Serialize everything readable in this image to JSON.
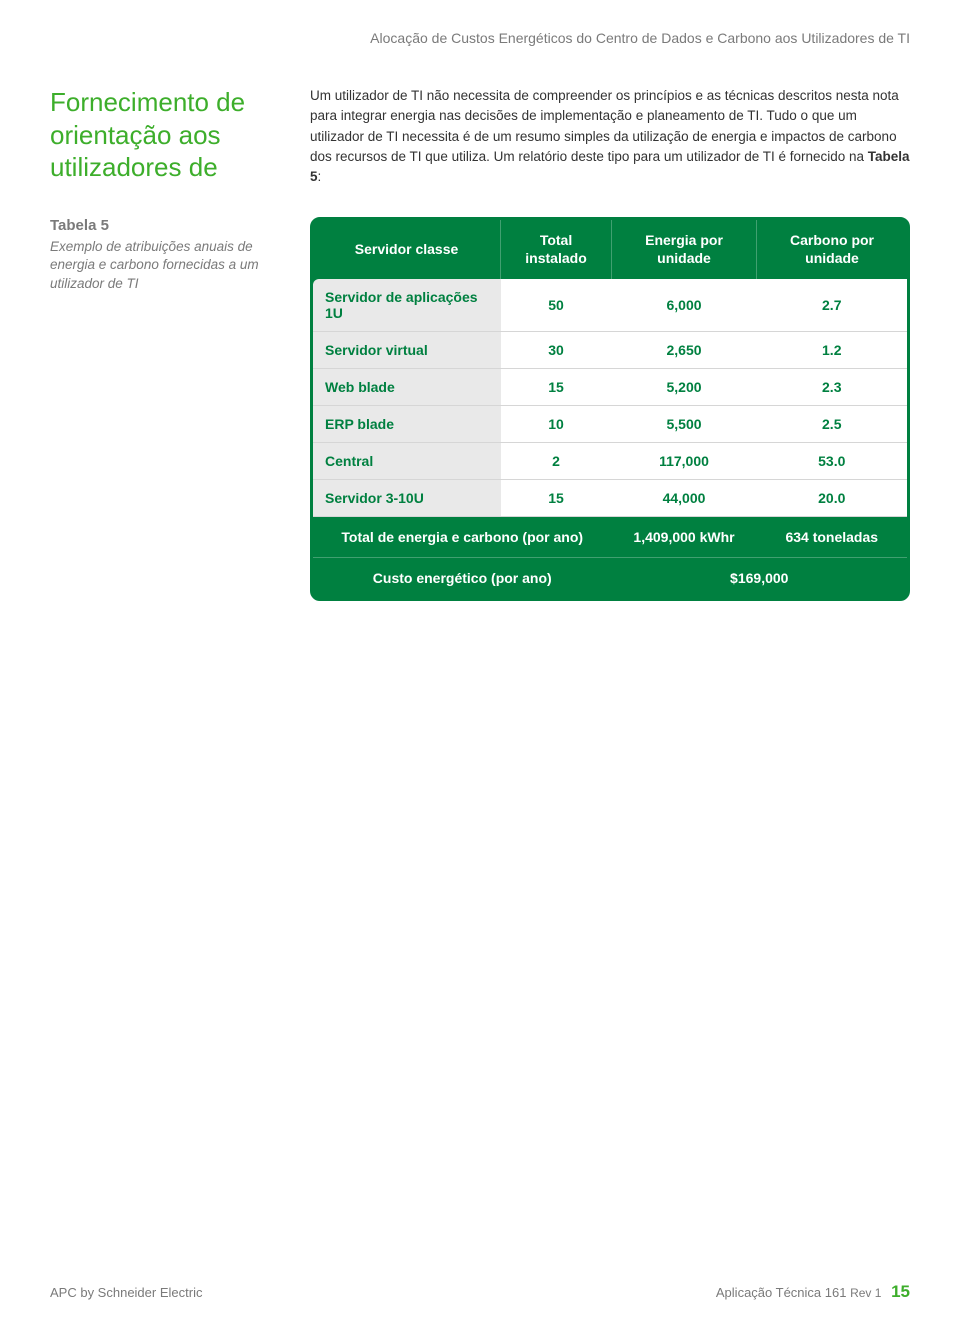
{
  "doc_header": "Alocação de Custos Energéticos do Centro de Dados e Carbono aos Utilizadores de TI",
  "section_heading": "Fornecimento de orientação aos utilizadores de",
  "body_paragraph_pre": "Um utilizador de TI não necessita de compreender os princípios e as técnicas descritos nesta nota para integrar energia nas decisões de implementação e planeamento de TI. Tudo o que um utilizador de TI necessita é de um resumo simples da utilização de energia e impactos de carbono dos recursos de TI que utiliza. Um relatório deste tipo para um utilizador de TI é fornecido na ",
  "body_paragraph_bold": "Tabela 5",
  "body_paragraph_post": ":",
  "caption_title": "Tabela 5",
  "caption_desc": "Exemplo de atribuições anuais de energia e carbono fornecidas a um utilizador de TI",
  "table": {
    "headers": [
      "Servidor classe",
      "Total instalado",
      "Energia por unidade",
      "Carbono por unidade"
    ],
    "rows": [
      [
        "Servidor de aplicações 1U",
        "50",
        "6,000",
        "2.7"
      ],
      [
        "Servidor virtual",
        "30",
        "2,650",
        "1.2"
      ],
      [
        "Web blade",
        "15",
        "5,200",
        "2.3"
      ],
      [
        "ERP blade",
        "10",
        "5,500",
        "2.5"
      ],
      [
        "Central",
        "2",
        "117,000",
        "53.0"
      ],
      [
        "Servidor 3-10U",
        "15",
        "44,000",
        "20.0"
      ]
    ],
    "summary1": {
      "label": "Total de energia e carbono (por ano)",
      "energy": "1,409,000 kWhr",
      "carbon": "634 toneladas"
    },
    "summary2": {
      "label": "Custo energético (por ano)",
      "value": "$169,000"
    }
  },
  "footer": {
    "left": "APC by Schneider Electric",
    "right_title": "Aplicação Técnica 161",
    "rev": "Rev 1",
    "page": "15"
  },
  "colors": {
    "accent_green": "#3dae2b",
    "table_green": "#008040",
    "grey_text": "#7a7a7a",
    "row_label_bg": "#e9e9e9"
  }
}
